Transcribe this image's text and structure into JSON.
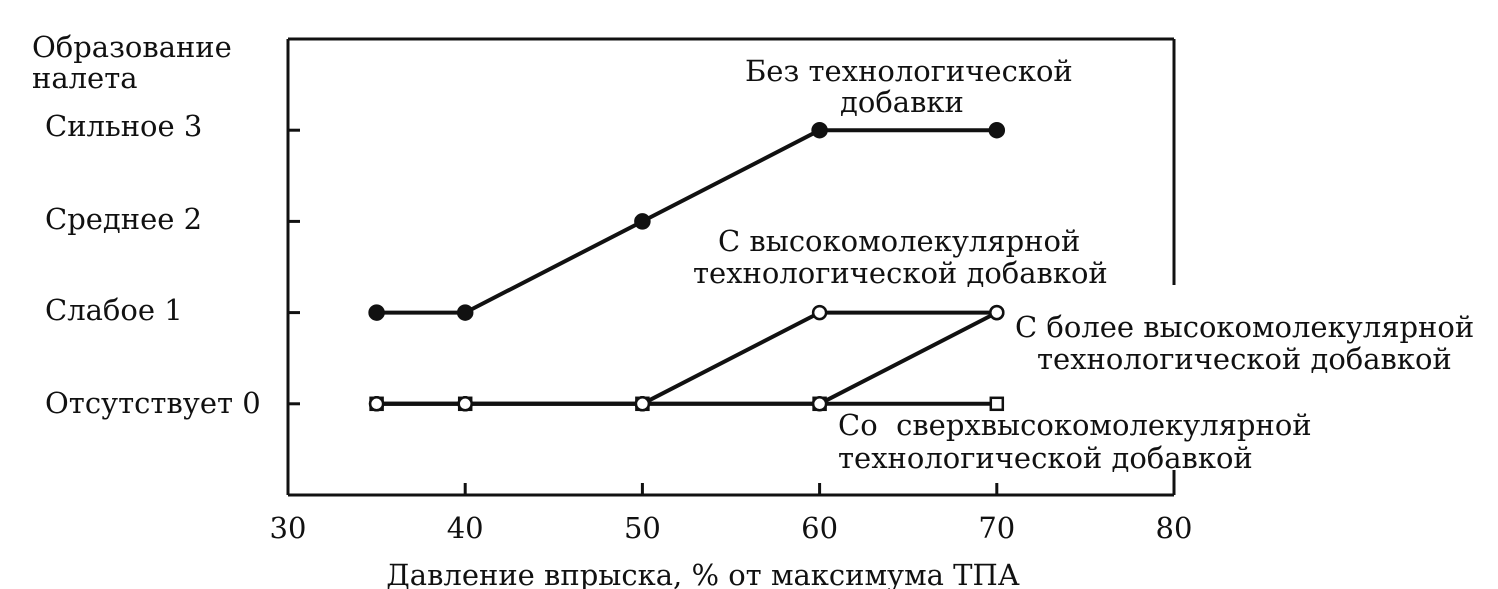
{
  "chart_data": {
    "type": "line",
    "ylabel_lines": [
      "Образование",
      "налета"
    ],
    "xlabel": "Давление впрыска, % от максимума ТПА",
    "x_ticks": [
      30,
      40,
      50,
      60,
      70,
      80
    ],
    "xlim": [
      30,
      80
    ],
    "ylim": [
      -1,
      4
    ],
    "y_ticks": [
      {
        "value": 0,
        "label": "Отсутствует 0"
      },
      {
        "value": 1,
        "label": "Слабое 1"
      },
      {
        "value": 2,
        "label": "Среднее 2"
      },
      {
        "value": 3,
        "label": "Сильное 3"
      }
    ],
    "grid": false,
    "series": [
      {
        "name_lines": [
          "Без технологической",
          "добавки"
        ],
        "marker": "filled-circle",
        "x": [
          35,
          40,
          50,
          60,
          70
        ],
        "y": [
          1,
          1,
          2,
          3,
          3
        ]
      },
      {
        "name_lines": [
          "С высокомолекулярной",
          "технологической добавкой"
        ],
        "marker": "open-circle",
        "x": [
          35,
          40,
          50,
          60,
          70
        ],
        "y": [
          0,
          0,
          0,
          1,
          1
        ]
      },
      {
        "name_lines": [
          "С более высокомолекулярной",
          "технологической добавкой"
        ],
        "marker": "open-circle",
        "x": [
          35,
          40,
          50,
          60,
          70
        ],
        "y": [
          0,
          0,
          0,
          0,
          1
        ]
      },
      {
        "name_lines": [
          "Со  сверхвысокомолекулярной",
          "технологической добавкой"
        ],
        "marker": "open-square",
        "x": [
          35,
          40,
          50,
          60,
          70
        ],
        "y": [
          0,
          0,
          0,
          0,
          0
        ]
      }
    ],
    "colors": {
      "ink": "#111111",
      "background": "#ffffff"
    }
  }
}
